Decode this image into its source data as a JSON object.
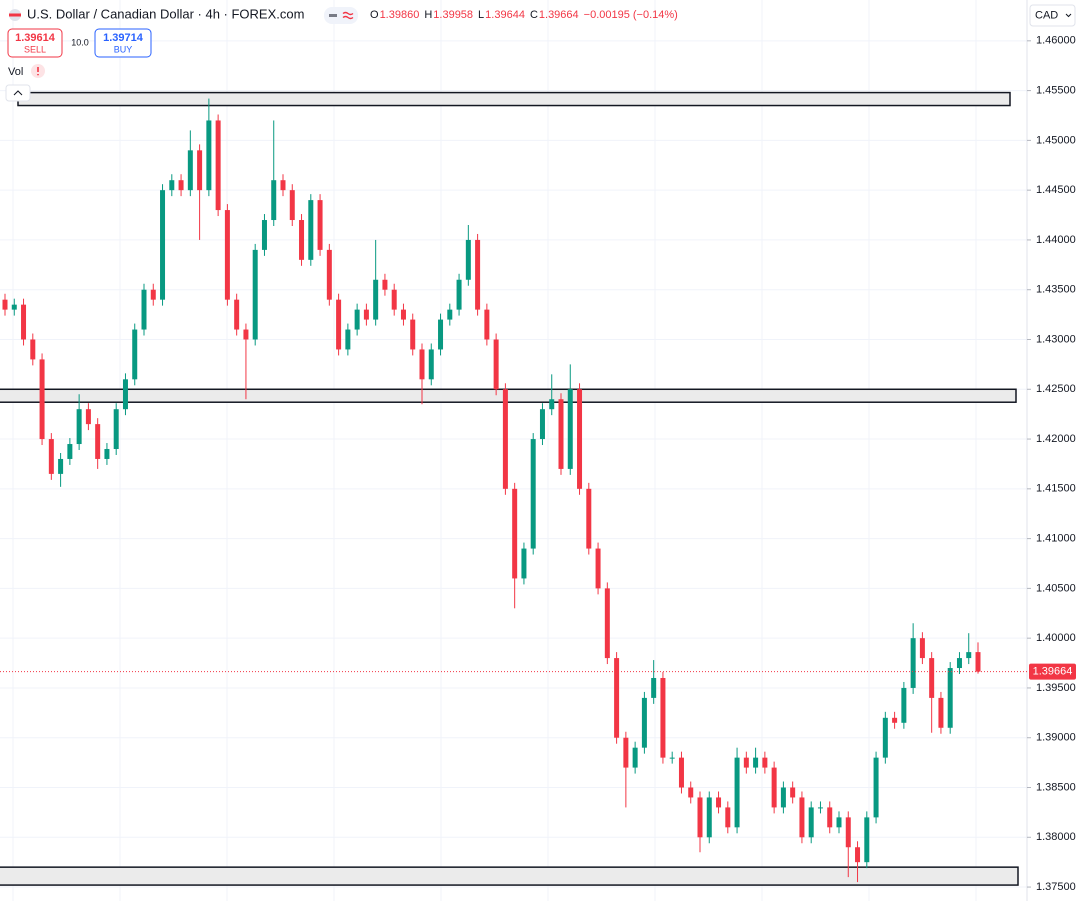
{
  "header": {
    "title": "U.S. Dollar / Canadian Dollar · 4h · FOREX.com",
    "ohlc": [
      {
        "label": "O",
        "value": "1.39860"
      },
      {
        "label": "H",
        "value": "1.39958"
      },
      {
        "label": "L",
        "value": "1.39644"
      },
      {
        "label": "C",
        "value": "1.39664"
      }
    ],
    "change": "−0.00195 (−0.14%)",
    "sell_price": "1.39614",
    "sell_label": "SELL",
    "spread": "10.0",
    "buy_price": "1.39714",
    "buy_label": "BUY",
    "volume_label": "Vol",
    "currency": "CAD"
  },
  "chart_data": {
    "type": "candlestick",
    "up_color": "#089981",
    "down_color": "#f23645",
    "ylim": [
      1.3736,
      1.4641
    ],
    "yticks": [
      {
        "value": 1.375,
        "label": "1.37500"
      },
      {
        "value": 1.38,
        "label": "1.38000"
      },
      {
        "value": 1.385,
        "label": "1.38500"
      },
      {
        "value": 1.39,
        "label": "1.39000"
      },
      {
        "value": 1.395,
        "label": "1.39500"
      },
      {
        "value": 1.4,
        "label": "1.40000"
      },
      {
        "value": 1.405,
        "label": "1.40500"
      },
      {
        "value": 1.41,
        "label": "1.41000"
      },
      {
        "value": 1.415,
        "label": "1.41500"
      },
      {
        "value": 1.42,
        "label": "1.42000"
      },
      {
        "value": 1.425,
        "label": "1.42500"
      },
      {
        "value": 1.43,
        "label": "1.43000"
      },
      {
        "value": 1.435,
        "label": "1.43500"
      },
      {
        "value": 1.44,
        "label": "1.44000"
      },
      {
        "value": 1.445,
        "label": "1.44500"
      },
      {
        "value": 1.45,
        "label": "1.45000"
      },
      {
        "value": 1.455,
        "label": "1.45500"
      },
      {
        "value": 1.46,
        "label": "1.46000"
      }
    ],
    "grid": true,
    "last_price": {
      "value": 1.39664,
      "label": "1.39664"
    },
    "zones": [
      {
        "top": 1.4548,
        "bottom": 1.4535
      },
      {
        "top": 1.425,
        "bottom": 1.4237
      },
      {
        "top": 1.377,
        "bottom": 1.3752
      }
    ],
    "open": [
      1.434,
      1.433,
      1.4335,
      1.43,
      1.428,
      1.42,
      1.4165,
      1.418,
      1.4195,
      1.423,
      1.4215,
      1.418,
      1.419,
      1.423,
      1.426,
      1.431,
      1.435,
      1.434,
      1.445,
      1.446,
      1.445,
      1.449,
      1.445,
      1.452,
      1.443,
      1.434,
      1.431,
      1.43,
      1.439,
      1.442,
      1.446,
      1.445,
      1.442,
      1.438,
      1.444,
      1.439,
      1.434,
      1.429,
      1.431,
      1.433,
      1.432,
      1.436,
      1.435,
      1.433,
      1.432,
      1.429,
      1.426,
      1.429,
      1.432,
      1.433,
      1.436,
      1.44,
      1.433,
      1.43,
      1.425,
      1.415,
      1.406,
      1.409,
      1.42,
      1.423,
      1.424,
      1.417,
      1.425,
      1.415,
      1.409,
      1.405,
      1.398,
      1.39,
      1.387,
      1.389,
      1.394,
      1.396,
      1.388,
      1.388,
      1.385,
      1.384,
      1.38,
      1.384,
      1.383,
      1.381,
      1.388,
      1.387,
      1.388,
      1.387,
      1.383,
      1.385,
      1.384,
      1.38,
      1.383,
      1.383,
      1.381,
      1.382,
      1.379,
      1.3775,
      1.382,
      1.388,
      1.392,
      1.3915,
      1.395,
      1.4,
      1.398,
      1.394,
      1.391,
      1.397,
      1.398,
      1.3986
    ],
    "high": [
      1.4346,
      1.4341,
      1.4341,
      1.4306,
      1.4286,
      1.4206,
      1.4186,
      1.4201,
      1.4245,
      1.4236,
      1.4221,
      1.4196,
      1.4236,
      1.4266,
      1.4316,
      1.4356,
      1.4356,
      1.4456,
      1.4466,
      1.4466,
      1.451,
      1.4496,
      1.4542,
      1.4526,
      1.4436,
      1.4346,
      1.4316,
      1.4396,
      1.4426,
      1.452,
      1.4466,
      1.4456,
      1.4426,
      1.4446,
      1.4446,
      1.4396,
      1.4346,
      1.4316,
      1.4336,
      1.4336,
      1.44,
      1.4366,
      1.4356,
      1.4336,
      1.4326,
      1.4296,
      1.4296,
      1.4326,
      1.4336,
      1.4366,
      1.4415,
      1.4406,
      1.4336,
      1.4306,
      1.4256,
      1.4156,
      1.4096,
      1.4206,
      1.4236,
      1.4265,
      1.4246,
      1.4275,
      1.4256,
      1.4156,
      1.4096,
      1.4056,
      1.3986,
      1.3906,
      1.3896,
      1.3946,
      1.3978,
      1.3966,
      1.3886,
      1.3886,
      1.3856,
      1.3846,
      1.3846,
      1.3846,
      1.3836,
      1.389,
      1.3886,
      1.389,
      1.3886,
      1.3876,
      1.3856,
      1.3856,
      1.3846,
      1.3836,
      1.3836,
      1.3836,
      1.3826,
      1.3826,
      1.3796,
      1.3826,
      1.3886,
      1.3926,
      1.3926,
      1.3956,
      1.4015,
      1.4006,
      1.3986,
      1.3946,
      1.3976,
      1.3986,
      1.4005,
      1.39958
    ],
    "low": [
      1.4324,
      1.4324,
      1.4294,
      1.4274,
      1.4194,
      1.4159,
      1.4152,
      1.4174,
      1.4189,
      1.4209,
      1.417,
      1.4174,
      1.4184,
      1.4224,
      1.4254,
      1.4304,
      1.4334,
      1.4334,
      1.4444,
      1.4444,
      1.4444,
      1.44,
      1.4444,
      1.4424,
      1.4334,
      1.4304,
      1.424,
      1.4294,
      1.4384,
      1.4414,
      1.4444,
      1.4414,
      1.4374,
      1.4374,
      1.4384,
      1.4334,
      1.4284,
      1.4284,
      1.4304,
      1.4314,
      1.4314,
      1.4344,
      1.4324,
      1.4314,
      1.4284,
      1.4235,
      1.4254,
      1.4284,
      1.4314,
      1.4324,
      1.4354,
      1.4324,
      1.4294,
      1.4244,
      1.4144,
      1.403,
      1.4054,
      1.4084,
      1.4194,
      1.4224,
      1.4164,
      1.4164,
      1.4144,
      1.4084,
      1.4044,
      1.3974,
      1.3894,
      1.383,
      1.3864,
      1.3884,
      1.3934,
      1.3874,
      1.3874,
      1.3844,
      1.3834,
      1.3785,
      1.3794,
      1.3824,
      1.3804,
      1.3804,
      1.3864,
      1.3864,
      1.3864,
      1.3824,
      1.3824,
      1.3834,
      1.3794,
      1.3794,
      1.3824,
      1.3804,
      1.3804,
      1.376,
      1.3755,
      1.3769,
      1.3814,
      1.3874,
      1.3909,
      1.3909,
      1.3944,
      1.3974,
      1.3905,
      1.3904,
      1.3904,
      1.3964,
      1.3974,
      1.39644
    ],
    "close": [
      1.433,
      1.4335,
      1.43,
      1.428,
      1.42,
      1.4165,
      1.418,
      1.4195,
      1.423,
      1.4215,
      1.418,
      1.419,
      1.423,
      1.426,
      1.431,
      1.435,
      1.434,
      1.445,
      1.446,
      1.445,
      1.449,
      1.445,
      1.452,
      1.443,
      1.434,
      1.431,
      1.43,
      1.439,
      1.442,
      1.446,
      1.445,
      1.442,
      1.438,
      1.444,
      1.439,
      1.434,
      1.429,
      1.431,
      1.433,
      1.432,
      1.436,
      1.435,
      1.433,
      1.432,
      1.429,
      1.426,
      1.429,
      1.432,
      1.433,
      1.436,
      1.44,
      1.433,
      1.43,
      1.425,
      1.415,
      1.406,
      1.409,
      1.42,
      1.423,
      1.424,
      1.417,
      1.425,
      1.415,
      1.409,
      1.405,
      1.398,
      1.39,
      1.387,
      1.389,
      1.394,
      1.396,
      1.388,
      1.388,
      1.385,
      1.384,
      1.38,
      1.384,
      1.383,
      1.381,
      1.388,
      1.387,
      1.388,
      1.387,
      1.383,
      1.385,
      1.384,
      1.38,
      1.383,
      1.383,
      1.381,
      1.382,
      1.379,
      1.3775,
      1.382,
      1.388,
      1.392,
      1.3915,
      1.395,
      1.4,
      1.398,
      1.394,
      1.391,
      1.397,
      1.398,
      1.3986,
      1.39664
    ]
  }
}
